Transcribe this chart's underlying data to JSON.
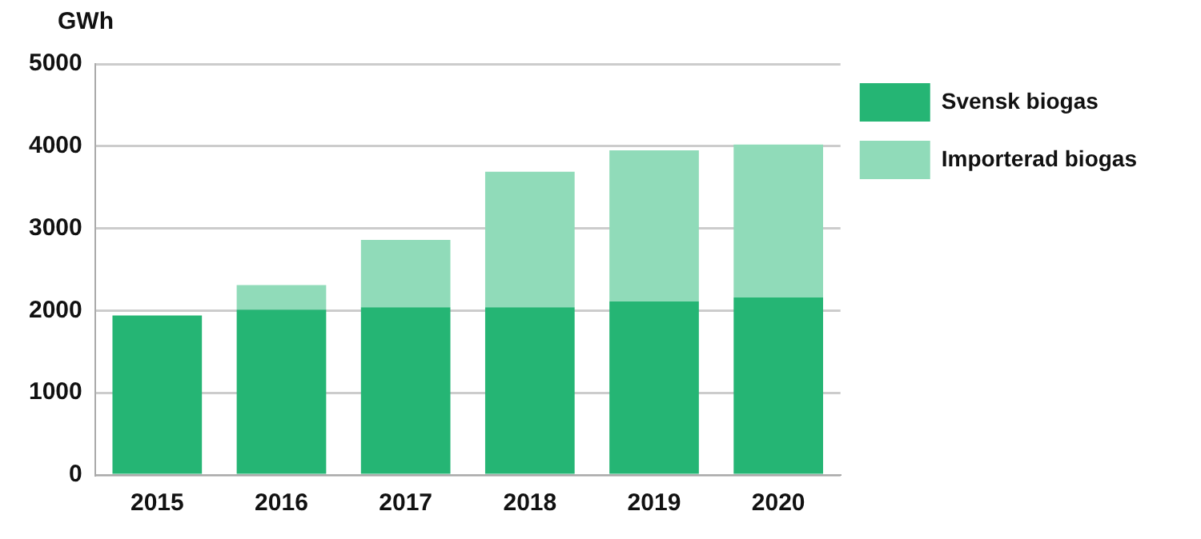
{
  "chart_data": {
    "type": "bar",
    "ylabel": "GWh",
    "categories": [
      "2015",
      "2016",
      "2017",
      "2018",
      "2019",
      "2020"
    ],
    "series": [
      {
        "name": "Svensk biogas",
        "color": "#25b574",
        "values": [
          1940,
          2010,
          2040,
          2040,
          2110,
          2160
        ]
      },
      {
        "name": "Importerad biogas",
        "color": "#90dbb9",
        "values": [
          0,
          300,
          820,
          1650,
          1840,
          1860
        ]
      }
    ],
    "stacked": true,
    "ylim": [
      0,
      5000
    ],
    "yticks": [
      0,
      1000,
      2000,
      3000,
      4000,
      5000
    ],
    "grid": "y",
    "legend": "right"
  }
}
